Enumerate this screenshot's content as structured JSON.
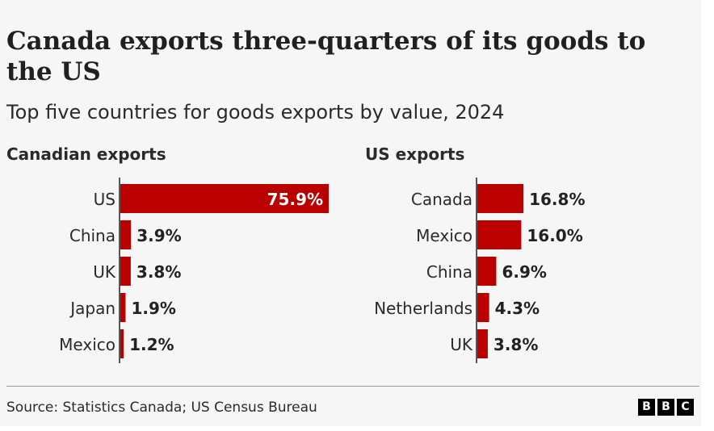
{
  "title": "Canada exports three-quarters of its goods to the US",
  "subtitle": "Top five countries for goods exports by value, 2024",
  "source": "Source: Statistics Canada; US Census Bureau",
  "logo": {
    "letters": [
      "B",
      "B",
      "C"
    ]
  },
  "colors": {
    "bar": "#bb0000",
    "text": "#222222",
    "inner_label": "#ffffff"
  },
  "chart_data": [
    {
      "type": "bar",
      "orientation": "horizontal",
      "title": "Canadian exports",
      "categories": [
        "US",
        "China",
        "UK",
        "Japan",
        "Mexico"
      ],
      "values": [
        75.9,
        3.9,
        3.8,
        1.9,
        1.2
      ],
      "labels": [
        "75.9%",
        "3.9%",
        "3.8%",
        "1.9%",
        "1.2%"
      ],
      "unit": "%",
      "xlim": [
        0,
        75.9
      ]
    },
    {
      "type": "bar",
      "orientation": "horizontal",
      "title": "US exports",
      "categories": [
        "Canada",
        "Mexico",
        "China",
        "Netherlands",
        "UK"
      ],
      "values": [
        16.8,
        16.0,
        6.9,
        4.3,
        3.8
      ],
      "labels": [
        "16.8%",
        "16.0%",
        "6.9%",
        "4.3%",
        "3.8%"
      ],
      "unit": "%",
      "xlim": [
        0,
        75.9
      ]
    }
  ]
}
